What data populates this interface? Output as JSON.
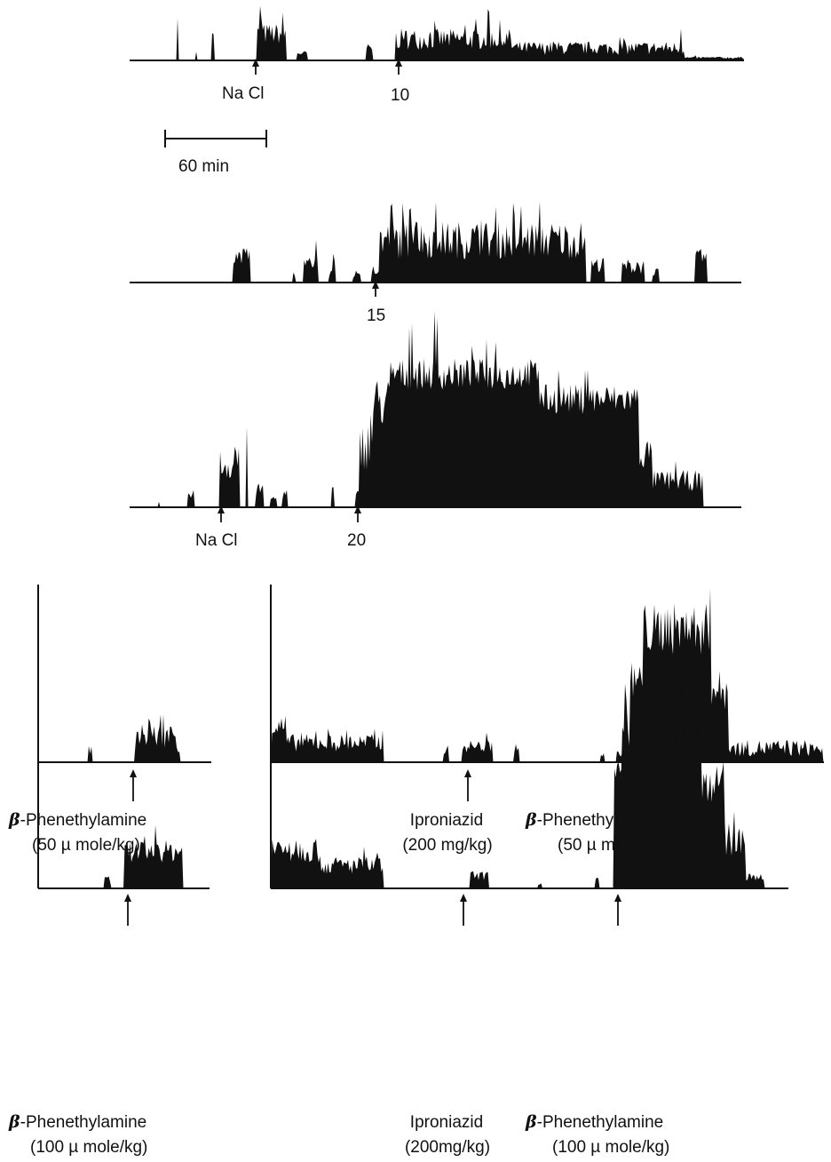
{
  "figure": {
    "scale_bar_label": "60 min",
    "beta_symbol": "β",
    "top_traces": [
      {
        "id": "dose-10",
        "markers": [
          {
            "label": "Na Cl"
          },
          {
            "label": "10"
          }
        ]
      },
      {
        "id": "dose-15",
        "markers": [
          {
            "label": "15"
          }
        ]
      },
      {
        "id": "dose-20",
        "markers": [
          {
            "label": "Na Cl"
          },
          {
            "label": "20"
          }
        ]
      }
    ],
    "bottom_rows": [
      {
        "left_label": {
          "drug": "-Phenethylamine",
          "dose": "(50 µ mole/kg)"
        },
        "right_labels": [
          {
            "drug": "Iproniazid",
            "dose": "(200 mg/kg)",
            "beta": false
          },
          {
            "drug": "-Phenethylamine",
            "dose": "(50 µ mole/kg)",
            "beta": true
          }
        ]
      },
      {
        "left_label": {
          "drug": "-Phenethylamine",
          "dose": "(100 µ mole/kg)"
        },
        "right_labels": [
          {
            "drug": "Iproniazid",
            "dose": "(200mg/kg)",
            "beta": false
          },
          {
            "drug": "-Phenethylamine",
            "dose": "(100 µ mole/kg)",
            "beta": true
          }
        ]
      }
    ]
  },
  "colors": {
    "ink": "#111111",
    "background": "#ffffff"
  }
}
